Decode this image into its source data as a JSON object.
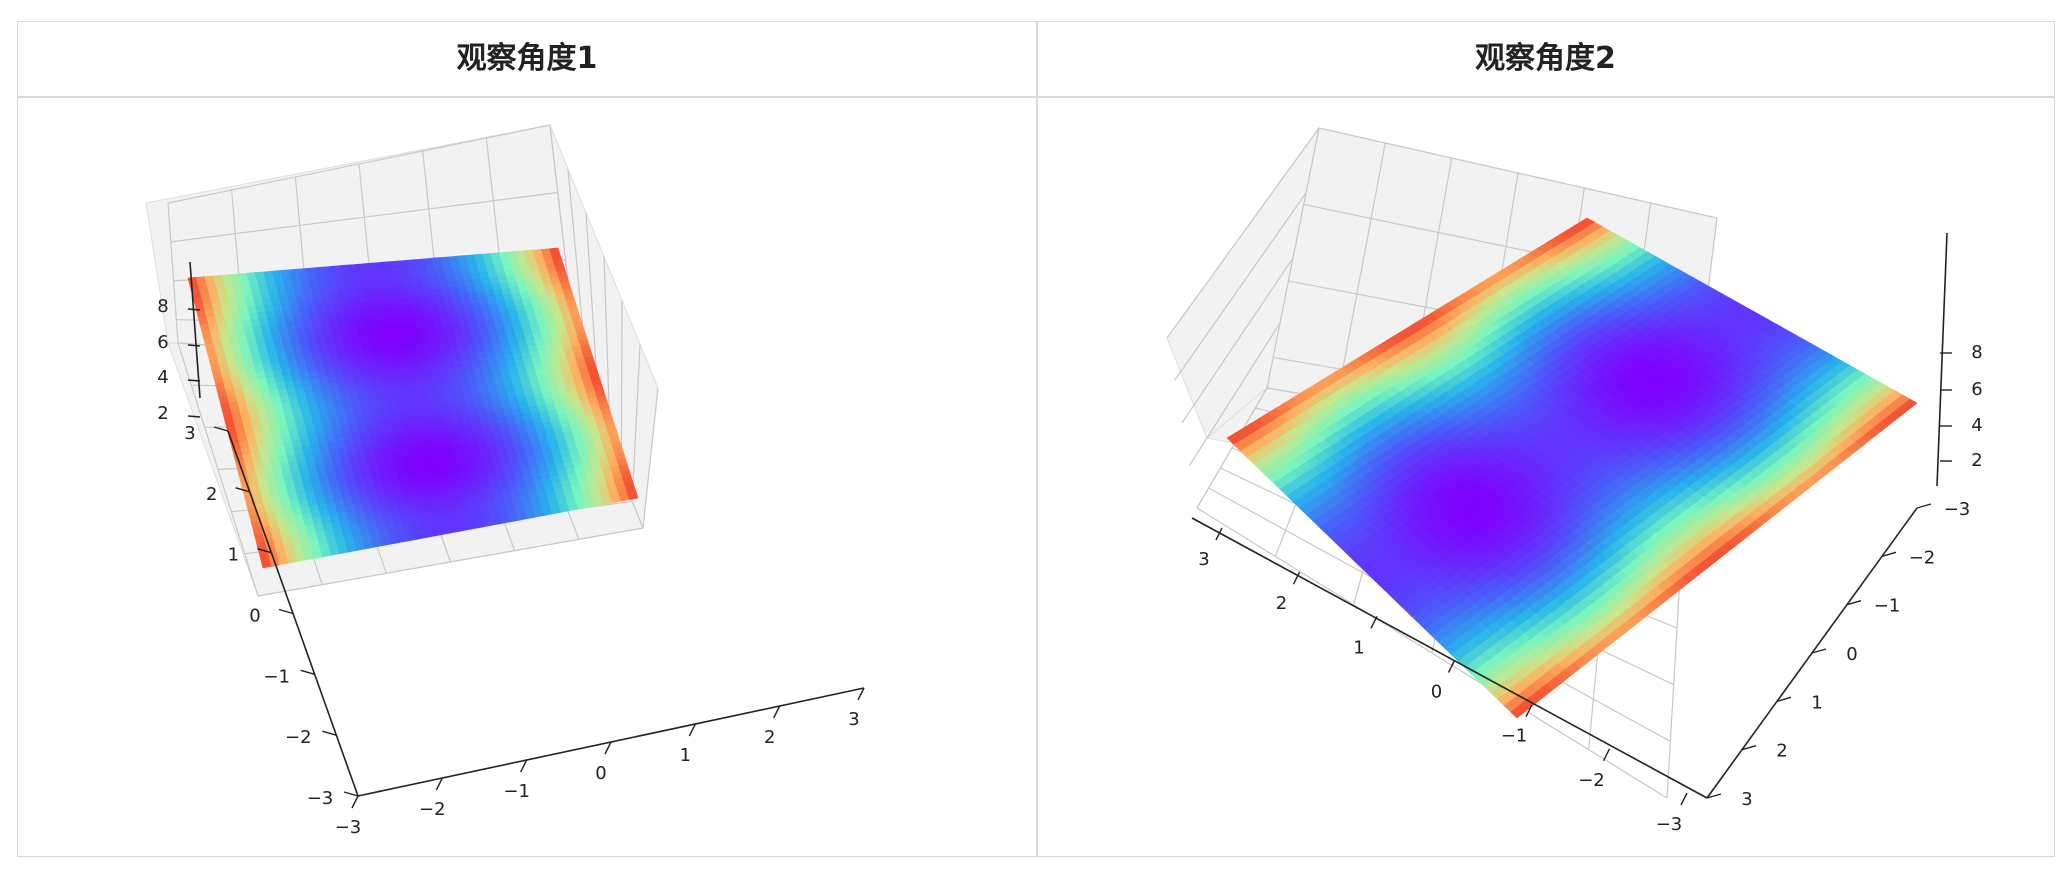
{
  "headers": [
    "观察角度1",
    "观察角度2"
  ],
  "chart_data": [
    {
      "type": "surface3d",
      "title": "",
      "colormap": "rainbow",
      "x_range": [
        -3,
        3
      ],
      "y_range": [
        -3,
        3
      ],
      "z_range": [
        0,
        9
      ],
      "x_ticks": [
        "−3",
        "−2",
        "−1",
        "0",
        "1",
        "2",
        "3"
      ],
      "y_ticks": [
        "−3",
        "−2",
        "−1",
        "0",
        "1",
        "2",
        "3"
      ],
      "z_ticks": [
        "2",
        "4",
        "6",
        "8"
      ],
      "grid": true
    },
    {
      "type": "surface3d",
      "title": "",
      "colormap": "rainbow",
      "x_range": [
        -3,
        3
      ],
      "y_range": [
        -3,
        3
      ],
      "z_range": [
        0,
        9
      ],
      "x_ticks": [
        "3",
        "2",
        "1",
        "0",
        "−1",
        "−2",
        "−3"
      ],
      "y_ticks": [
        "−3",
        "−2",
        "−1",
        "0",
        "1",
        "2",
        "3"
      ],
      "z_ticks": [
        "2",
        "4",
        "6",
        "8"
      ],
      "grid": true
    }
  ],
  "colors": {
    "border": "#d4d9e0",
    "pane": "#f2f2f2",
    "grid": "#c8c8c8"
  }
}
